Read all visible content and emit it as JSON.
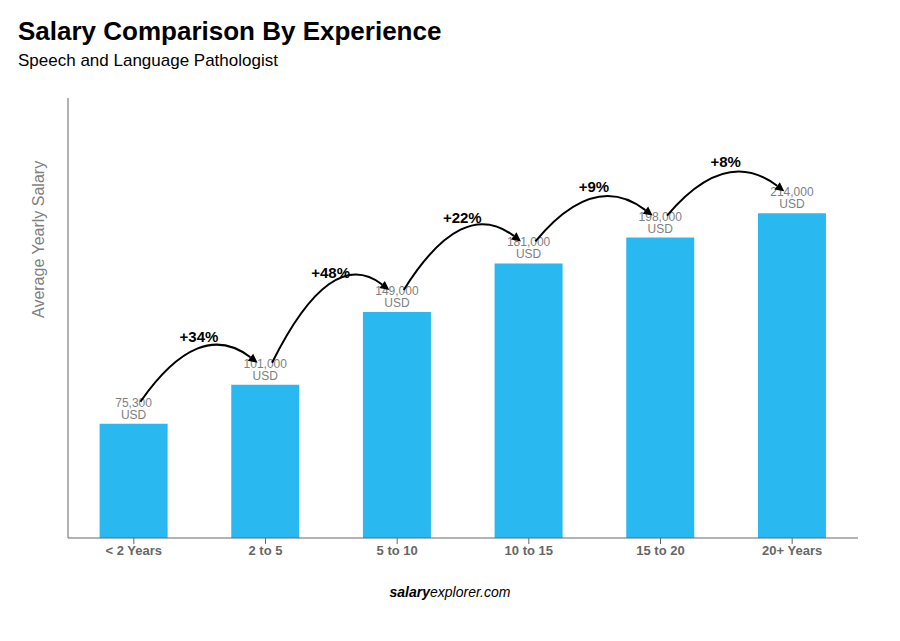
{
  "chart_data": {
    "type": "bar",
    "title": "Salary Comparison By Experience",
    "subtitle": "Speech and Language Pathologist",
    "categories": [
      "< 2 Years",
      "2 to 5",
      "5 to 10",
      "10 to 15",
      "15 to 20",
      "20+ Years"
    ],
    "values": [
      75300,
      101000,
      149000,
      181000,
      198000,
      214000
    ],
    "value_labels": [
      "75,300 USD",
      "101,000 USD",
      "149,000 USD",
      "181,000 USD",
      "198,000 USD",
      "214,000 USD"
    ],
    "data_labels": true,
    "annotations": [
      "+34%",
      "+48%",
      "+22%",
      "+9%",
      "+8%"
    ],
    "watermark": [
      "salary",
      "explorer.com"
    ],
    "ylabel": "Average Yearly Salary",
    "color": "#29b8f0",
    "ylim": [
      0,
      290000
    ],
    "tick_labels": "x",
    "grid": false
  }
}
